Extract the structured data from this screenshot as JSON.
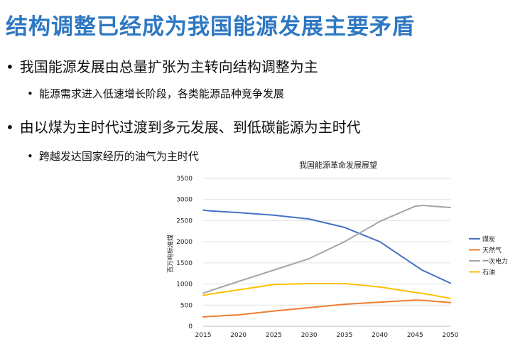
{
  "slide": {
    "title": "结构调整已经成为我国能源发展主要矛盾",
    "bullets": [
      {
        "level": 1,
        "text": "我国能源发展由总量扩张为主转向结构调整为主"
      },
      {
        "level": 2,
        "text": "能源需求进入低速增长阶段，各类能源品种竞争发展"
      },
      {
        "level": 1,
        "text": "由以煤为主时代过渡到多元发展、到低碳能源为主时代"
      },
      {
        "level": 2,
        "text": "跨越发达国家经历的油气为主时代"
      }
    ],
    "bullet_glyph": "•"
  },
  "chart_data": {
    "type": "line",
    "title": "我国能源革命发展展望",
    "xlabel": "",
    "ylabel": "百万吨标准煤",
    "x": [
      2015,
      2016,
      2020,
      2025,
      2030,
      2035,
      2040,
      2045,
      2046,
      2050
    ],
    "xticks": [
      2015,
      2020,
      2025,
      2030,
      2035,
      2040,
      2045,
      2050
    ],
    "xlim": [
      2015,
      2050
    ],
    "ylim": [
      0,
      3500
    ],
    "yticks": [
      0,
      500,
      1000,
      1500,
      2000,
      2500,
      3000,
      3500
    ],
    "grid": true,
    "legend": "right",
    "series": [
      {
        "name": "煤炭",
        "color": "#4472c4",
        "values": [
          2750,
          2730,
          2690,
          2630,
          2540,
          2340,
          2000,
          1440,
          1330,
          1020
        ]
      },
      {
        "name": "天然气",
        "color": "#ed7d31",
        "values": [
          220,
          230,
          270,
          360,
          440,
          520,
          570,
          620,
          615,
          560
        ]
      },
      {
        "name": "一次电力",
        "color": "#a5a5a5",
        "values": [
          780,
          840,
          1060,
          1330,
          1600,
          2000,
          2480,
          2840,
          2860,
          2810
        ]
      },
      {
        "name": "石油",
        "color": "#ffc000",
        "values": [
          730,
          760,
          860,
          990,
          1010,
          1010,
          930,
          800,
          780,
          660
        ]
      }
    ]
  }
}
